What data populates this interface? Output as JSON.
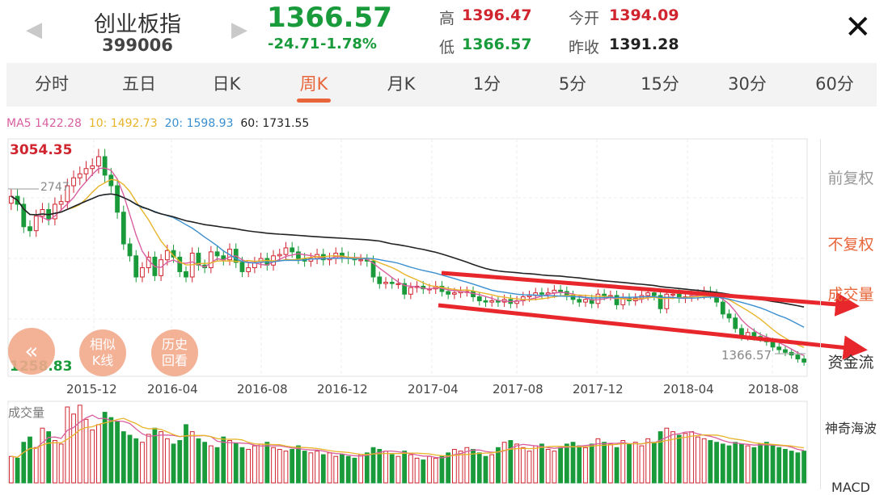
{
  "header": {
    "name": "创业板指",
    "code": "399006",
    "price": "1366.57",
    "change": "-24.71",
    "change_pct": "-1.78%",
    "high_label": "高",
    "high": "1396.47",
    "low_label": "低",
    "low": "1366.57",
    "open_label": "今开",
    "open": "1394.09",
    "prev_close_label": "昨收",
    "prev_close": "1391.28",
    "up_color": "#d0242f",
    "down_color": "#1a9b3b"
  },
  "tabs": [
    {
      "label": "分时"
    },
    {
      "label": "五日"
    },
    {
      "label": "日K"
    },
    {
      "label": "周K"
    },
    {
      "label": "月K"
    },
    {
      "label": "1分"
    },
    {
      "label": "5分"
    },
    {
      "label": "15分"
    },
    {
      "label": "30分"
    },
    {
      "label": "60分"
    }
  ],
  "active_tab": "周K",
  "ma_legend": {
    "ma5": "MA5 1422.28",
    "ma10": "10: 1492.73",
    "ma20": "20: 1598.93",
    "ma60": "60: 1731.55",
    "colors": {
      "ma5": "#d95fa0",
      "ma10": "#e8b429",
      "ma20": "#3a8fd0",
      "ma60": "#222222"
    }
  },
  "side_panel": {
    "items": [
      "前复权",
      "不复权",
      "成交量",
      "资金流",
      "神奇海波",
      "MACD"
    ],
    "active": "不复权",
    "accent": "#e8653a"
  },
  "buttons": {
    "back": "«",
    "similar": [
      "相似",
      "K线"
    ],
    "history": [
      "历史",
      "回看"
    ]
  },
  "chart_data": {
    "type": "candlestick",
    "title": "",
    "max_label": "3054.35",
    "min_label": "1258.83",
    "ref_label": "2747",
    "last_label": "1366.57",
    "ylim": [
      1258.83,
      3054.35
    ],
    "x_ticks": [
      "2015-12",
      "2016-04",
      "2016-08",
      "2016-12",
      "2017-04",
      "2017-08",
      "2017-12",
      "2018-04",
      "2018-08"
    ],
    "volume_label": "成交量",
    "close": [
      2620,
      2560,
      2390,
      2360,
      2470,
      2520,
      2450,
      2560,
      2580,
      2700,
      2760,
      2790,
      2830,
      2850,
      2920,
      2780,
      2700,
      2500,
      2260,
      2170,
      2010,
      2080,
      2160,
      2020,
      2140,
      2210,
      2160,
      2050,
      2010,
      2190,
      2100,
      2080,
      2200,
      2170,
      2140,
      2220,
      2120,
      2050,
      2080,
      2120,
      2150,
      2100,
      2170,
      2180,
      2230,
      2200,
      2150,
      2130,
      2150,
      2180,
      2140,
      2150,
      2190,
      2160,
      2150,
      2140,
      2140,
      2130,
      2010,
      1960,
      1970,
      1960,
      1960,
      1880,
      1930,
      1940,
      1920,
      1920,
      1940,
      1900,
      1880,
      1890,
      1900,
      1900,
      1860,
      1830,
      1820,
      1830,
      1820,
      1840,
      1810,
      1830,
      1860,
      1870,
      1890,
      1880,
      1890,
      1910,
      1900,
      1870,
      1840,
      1820,
      1840,
      1810,
      1880,
      1870,
      1870,
      1800,
      1850,
      1830,
      1850,
      1870,
      1890,
      1870,
      1770,
      1880,
      1880,
      1850,
      1860,
      1870,
      1880,
      1900,
      1880,
      1820,
      1730,
      1700,
      1620,
      1560,
      1590,
      1560,
      1550,
      1520,
      1480,
      1460,
      1440,
      1420,
      1390,
      1366
    ],
    "volume": [
      30,
      28,
      46,
      52,
      40,
      62,
      58,
      48,
      44,
      86,
      78,
      88,
      72,
      60,
      66,
      80,
      74,
      70,
      58,
      54,
      50,
      46,
      55,
      62,
      58,
      50,
      44,
      48,
      66,
      58,
      50,
      46,
      42,
      40,
      52,
      48,
      45,
      40,
      38,
      42,
      44,
      46,
      40,
      38,
      36,
      38,
      42,
      36,
      34,
      36,
      32,
      34,
      30,
      32,
      30,
      28,
      32,
      34,
      40,
      38,
      36,
      32,
      30,
      36,
      32,
      28,
      26,
      30,
      28,
      30,
      34,
      38,
      36,
      40,
      38,
      34,
      30,
      32,
      40,
      46,
      48,
      44,
      40,
      36,
      42,
      44,
      38,
      36,
      40,
      44,
      46,
      42,
      40,
      44,
      50,
      46,
      44,
      40,
      48,
      44,
      46,
      42,
      50,
      46,
      58,
      62,
      58,
      54,
      56,
      58,
      52,
      50,
      48,
      46,
      44,
      42,
      46,
      44,
      42,
      40,
      44,
      46,
      42,
      40,
      38,
      36,
      34,
      36
    ]
  }
}
